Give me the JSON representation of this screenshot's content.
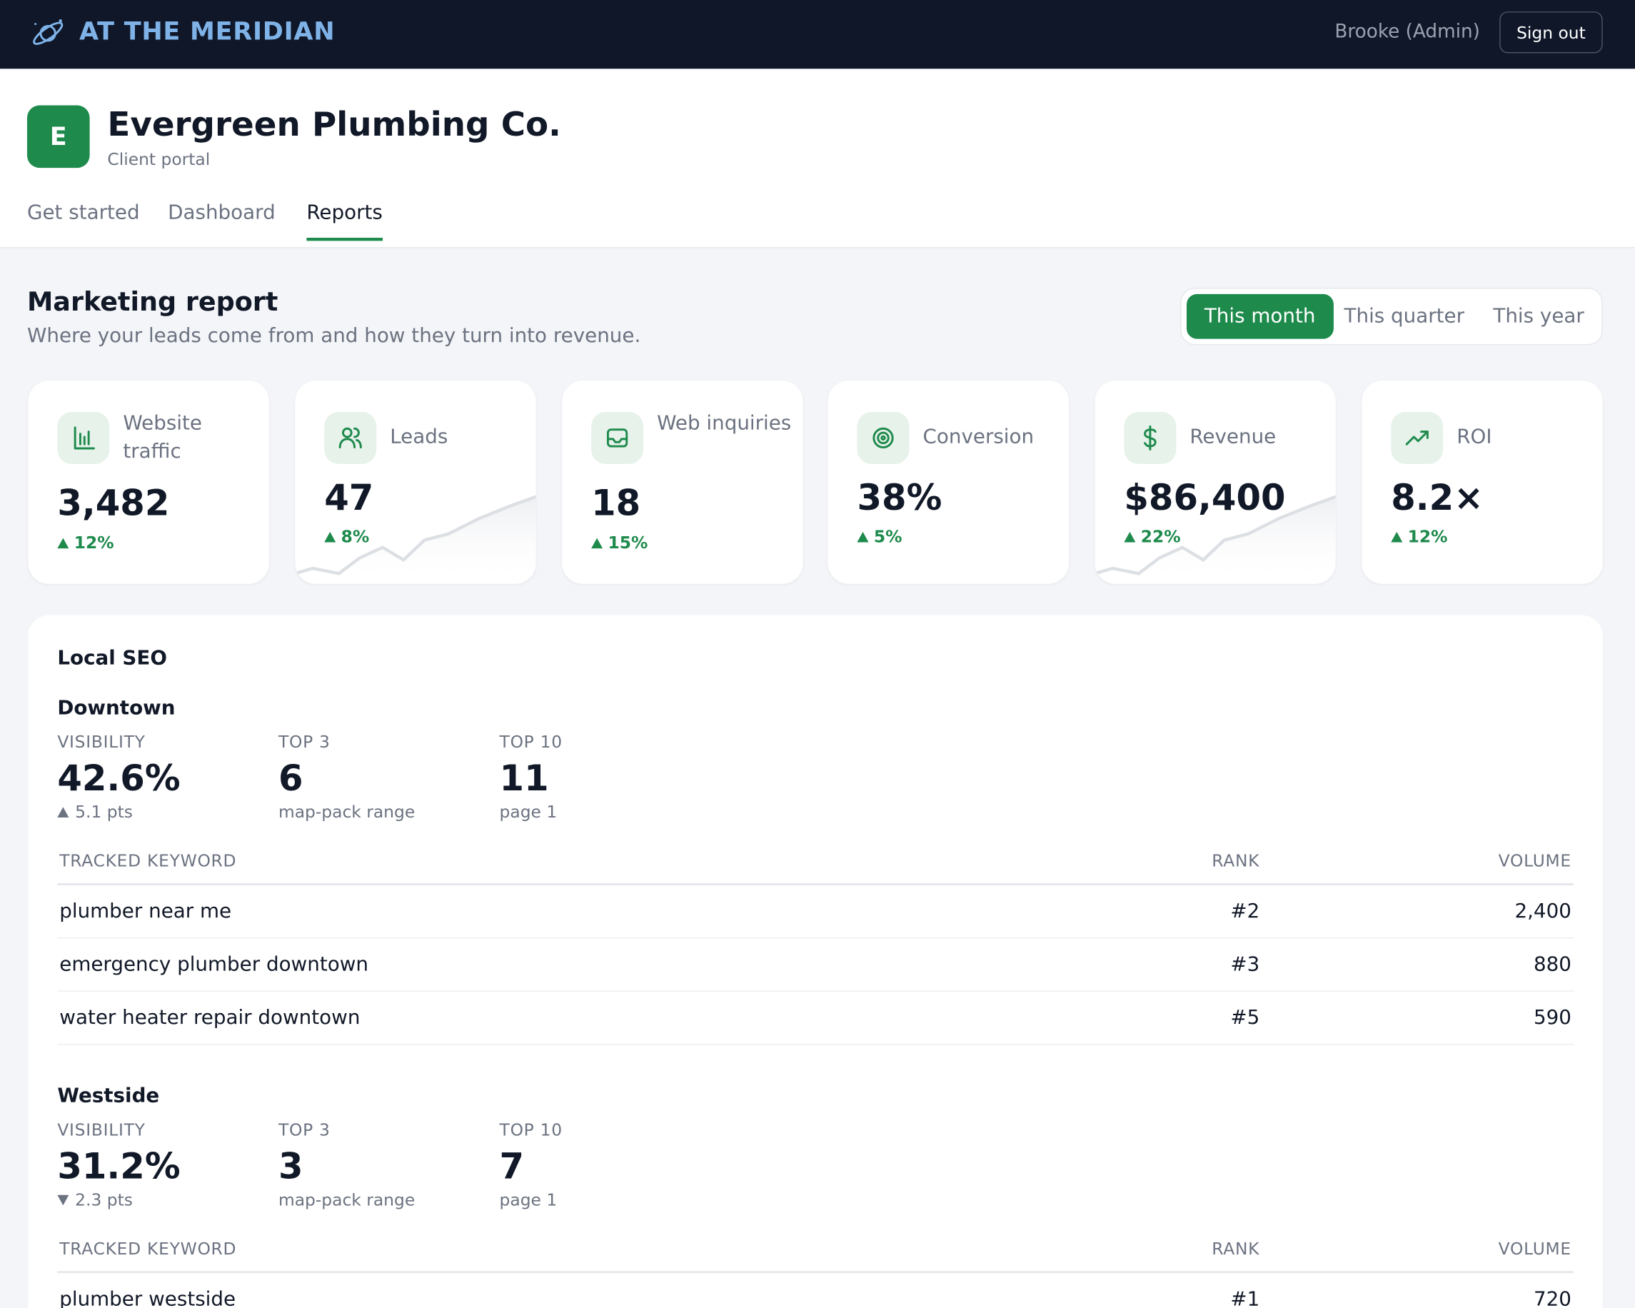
{
  "header": {
    "brand": "AT THE MERIDIAN",
    "user": "Brooke (Admin)",
    "sign_out": "Sign out"
  },
  "client": {
    "initial": "E",
    "name": "Evergreen Plumbing Co.",
    "subtitle": "Client portal"
  },
  "tabs": [
    "Get started",
    "Dashboard",
    "Reports"
  ],
  "report": {
    "title": "Marketing report",
    "subtitle": "Where your leads come from and how they turn into revenue.",
    "periods": [
      "This month",
      "This quarter",
      "This year"
    ]
  },
  "kpis": [
    {
      "label": "Website traffic",
      "value": "3,482",
      "change": "12%"
    },
    {
      "label": "Leads",
      "value": "47",
      "change": "8%"
    },
    {
      "label": "Web inquiries",
      "value": "18",
      "change": "15%"
    },
    {
      "label": "Conversion",
      "value": "38%",
      "change": "5%"
    },
    {
      "label": "Revenue",
      "value": "$86,400",
      "change": "22%"
    },
    {
      "label": "ROI",
      "value": "8.2×",
      "change": "12%"
    }
  ],
  "seo": {
    "title": "Local SEO",
    "locations": [
      {
        "name": "Downtown",
        "metrics": [
          {
            "label": "VISIBILITY",
            "value": "42.6%",
            "note": "5.1 pts",
            "trend": "up"
          },
          {
            "label": "TOP 3",
            "value": "6",
            "note": "map-pack range"
          },
          {
            "label": "TOP 10",
            "value": "11",
            "note": "page 1"
          }
        ],
        "columns": [
          "TRACKED KEYWORD",
          "RANK",
          "VOLUME"
        ],
        "rows": [
          [
            "plumber near me",
            "#2",
            "2,400"
          ],
          [
            "emergency plumber downtown",
            "#3",
            "880"
          ],
          [
            "water heater repair downtown",
            "#5",
            "590"
          ]
        ]
      },
      {
        "name": "Westside",
        "metrics": [
          {
            "label": "VISIBILITY",
            "value": "31.2%",
            "note": "2.3 pts",
            "trend": "down"
          },
          {
            "label": "TOP 3",
            "value": "3",
            "note": "map-pack range"
          },
          {
            "label": "TOP 10",
            "value": "7",
            "note": "page 1"
          }
        ],
        "columns": [
          "TRACKED KEYWORD",
          "RANK",
          "VOLUME"
        ],
        "rows": [
          [
            "plumber westside",
            "#1",
            "720"
          ]
        ]
      }
    ]
  }
}
